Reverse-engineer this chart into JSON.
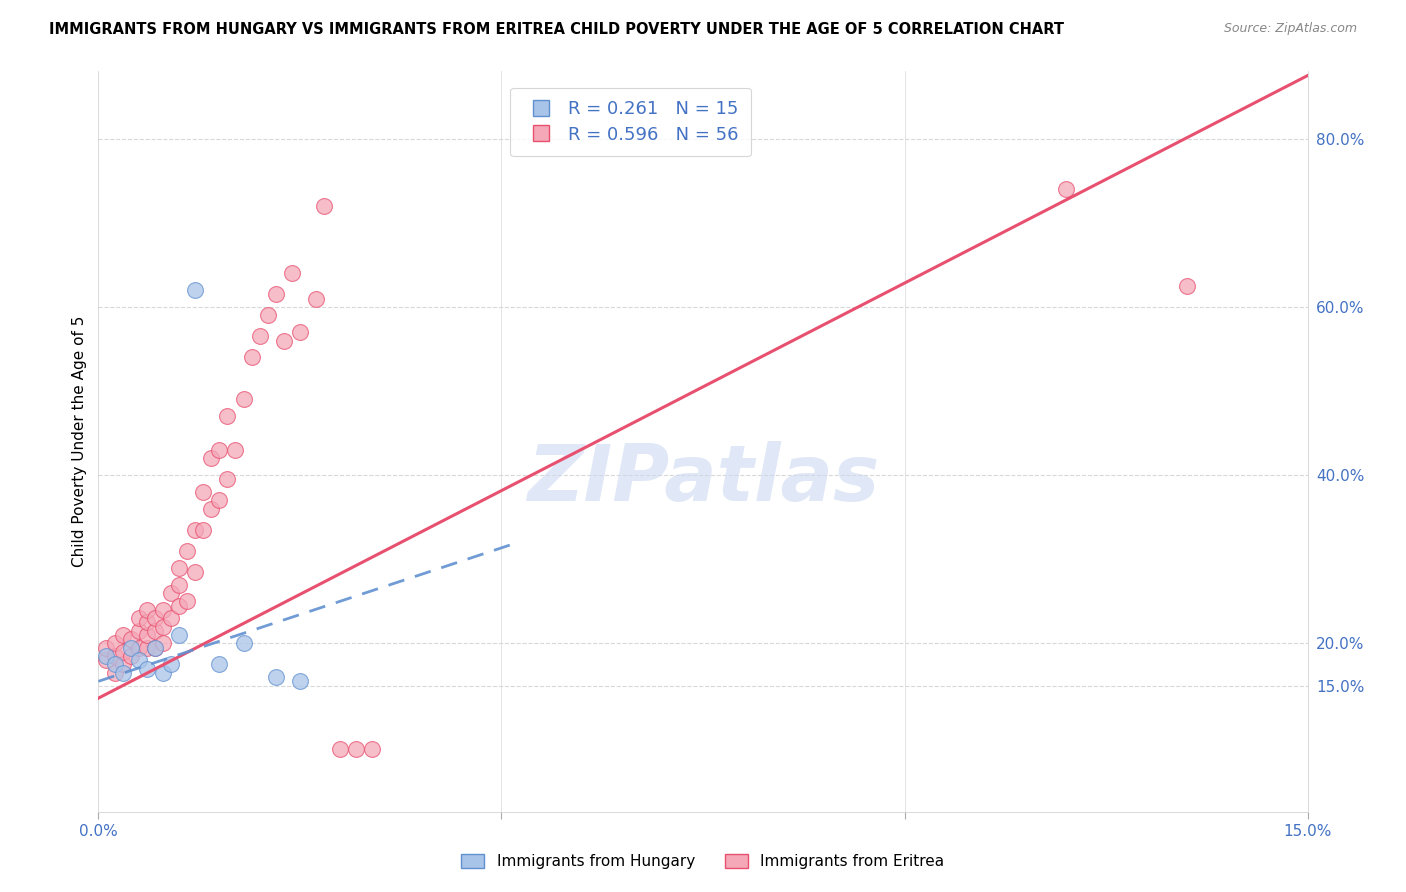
{
  "title": "IMMIGRANTS FROM HUNGARY VS IMMIGRANTS FROM ERITREA CHILD POVERTY UNDER THE AGE OF 5 CORRELATION CHART",
  "source": "Source: ZipAtlas.com",
  "ylabel": "Child Poverty Under the Age of 5",
  "xmin": 0.0,
  "xmax": 0.15,
  "ymin": 0.0,
  "ymax": 0.88,
  "yticks_right": [
    0.15,
    0.2,
    0.4,
    0.6,
    0.8
  ],
  "ytick_labels_right": [
    "15.0%",
    "20.0%",
    "40.0%",
    "60.0%",
    "80.0%"
  ],
  "xticks": [
    0.0,
    0.05,
    0.1,
    0.15
  ],
  "xtick_labels": [
    "0.0%",
    "",
    "",
    "15.0%"
  ],
  "legend_r_hungary": "R = 0.261",
  "legend_n_hungary": "N = 15",
  "legend_r_eritrea": "R = 0.596",
  "legend_n_eritrea": "N = 56",
  "hungary_color": "#a8c4e8",
  "eritrea_color": "#f4a8b8",
  "hungary_line_color": "#6090d0",
  "eritrea_line_color": "#e85070",
  "watermark": "ZIPatlas",
  "watermark_color": "#ccd8f0",
  "background_color": "#ffffff",
  "grid_color": "#d8d8d8",
  "hungary_scatter_x": [
    0.001,
    0.002,
    0.003,
    0.004,
    0.005,
    0.006,
    0.007,
    0.008,
    0.009,
    0.01,
    0.012,
    0.015,
    0.018,
    0.022,
    0.025
  ],
  "hungary_scatter_y": [
    0.185,
    0.175,
    0.165,
    0.195,
    0.18,
    0.17,
    0.195,
    0.165,
    0.175,
    0.21,
    0.62,
    0.175,
    0.2,
    0.16,
    0.155
  ],
  "eritrea_scatter_x": [
    0.001,
    0.001,
    0.002,
    0.002,
    0.002,
    0.003,
    0.003,
    0.003,
    0.004,
    0.004,
    0.005,
    0.005,
    0.005,
    0.006,
    0.006,
    0.006,
    0.006,
    0.007,
    0.007,
    0.007,
    0.008,
    0.008,
    0.008,
    0.009,
    0.009,
    0.01,
    0.01,
    0.01,
    0.011,
    0.011,
    0.012,
    0.012,
    0.013,
    0.013,
    0.014,
    0.014,
    0.015,
    0.015,
    0.016,
    0.016,
    0.017,
    0.018,
    0.019,
    0.02,
    0.021,
    0.022,
    0.023,
    0.024,
    0.025,
    0.027,
    0.028,
    0.03,
    0.032,
    0.034,
    0.12,
    0.135
  ],
  "eritrea_scatter_y": [
    0.18,
    0.195,
    0.165,
    0.185,
    0.2,
    0.175,
    0.19,
    0.21,
    0.185,
    0.205,
    0.195,
    0.215,
    0.23,
    0.195,
    0.21,
    0.225,
    0.24,
    0.195,
    0.215,
    0.23,
    0.2,
    0.22,
    0.24,
    0.23,
    0.26,
    0.245,
    0.27,
    0.29,
    0.25,
    0.31,
    0.285,
    0.335,
    0.335,
    0.38,
    0.36,
    0.42,
    0.37,
    0.43,
    0.395,
    0.47,
    0.43,
    0.49,
    0.54,
    0.565,
    0.59,
    0.615,
    0.56,
    0.64,
    0.57,
    0.61,
    0.72,
    0.075,
    0.075,
    0.075,
    0.74,
    0.625
  ],
  "eritrea_line_x0": 0.0,
  "eritrea_line_y0": 0.135,
  "eritrea_line_x1": 0.15,
  "eritrea_line_y1": 0.875,
  "hungary_line_x0": 0.0,
  "hungary_line_y0": 0.155,
  "hungary_line_x1": 0.052,
  "hungary_line_y1": 0.32
}
